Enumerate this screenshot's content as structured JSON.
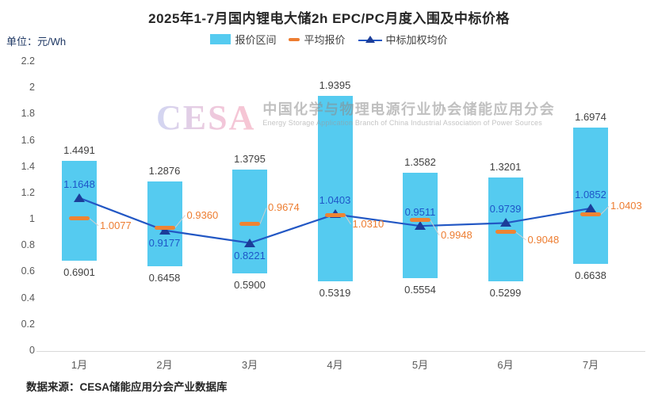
{
  "title": "2025年1-7月国内锂电大储2h EPC/PC月度入围及中标价格",
  "unit_label": "单位：元/Wh",
  "legend": [
    {
      "label": "报价区间",
      "marker": "bar-swatch"
    },
    {
      "label": "平均报价",
      "marker": "dash-marker"
    },
    {
      "label": "中标加权均价",
      "marker": "line-triangle-marker"
    }
  ],
  "watermark": {
    "logo": "CESA",
    "cn": "中国化学与物理电源行业协会储能应用分会",
    "en": "Energy Storage Application Branch of China Industrial Association of Power Sources"
  },
  "source": "数据来源：CESA储能应用分会产业数据库",
  "colors": {
    "bar": "#55cbf0",
    "line": "#2257c4",
    "triangle": "#1c3d99",
    "avg_orange": "#ed7d31",
    "value_label": "#3f3f3f",
    "blue_label": "#1e56c8",
    "axis_text": "#595959",
    "axis_line": "#d9d9d9",
    "leader_line": "#cfcfcf"
  },
  "chart_data": {
    "type": "bar",
    "subtype": "floating-range-bars-with-line-overlay",
    "title": "2025年1-7月国内锂电大储2h EPC/PC月度入围及中标价格",
    "ylabel": "元/Wh",
    "categories": [
      "1月",
      "2月",
      "3月",
      "4月",
      "5月",
      "6月",
      "7月"
    ],
    "series": [
      {
        "name": "报价区间",
        "type": "range-bar",
        "high": [
          1.4491,
          1.2876,
          1.3795,
          1.9395,
          1.3582,
          1.3201,
          1.6974
        ],
        "low": [
          0.6901,
          0.6458,
          0.59,
          0.5319,
          0.5554,
          0.5299,
          0.6638
        ],
        "high_labels": [
          "1.4491",
          "1.2876",
          "1.3795",
          "1.9395",
          "1.3582",
          "1.3201",
          "1.6974"
        ],
        "low_labels": [
          "0.6901",
          "0.6458",
          "0.5900",
          "0.5319",
          "0.5554",
          "0.5299",
          "0.6638"
        ]
      },
      {
        "name": "平均报价",
        "type": "dash-marker",
        "values": [
          1.0077,
          0.936,
          0.9674,
          1.031,
          0.9948,
          0.9048,
          1.0403
        ],
        "labels": [
          "1.0077",
          "0.9360",
          "0.9674",
          "1.0310",
          "0.9948",
          "0.9048",
          "1.0403"
        ]
      },
      {
        "name": "中标加权均价",
        "type": "line",
        "values": [
          1.1648,
          0.9177,
          0.8221,
          1.0403,
          0.9511,
          0.9739,
          1.0852
        ],
        "labels": [
          "1.1648",
          "0.9177",
          "0.8221",
          "1.0403",
          "0.9511",
          "0.9739",
          "1.0852"
        ]
      }
    ],
    "ylim": [
      0,
      2.2
    ],
    "ytick_step": 0.2,
    "grid": false,
    "legend_position": "top"
  }
}
